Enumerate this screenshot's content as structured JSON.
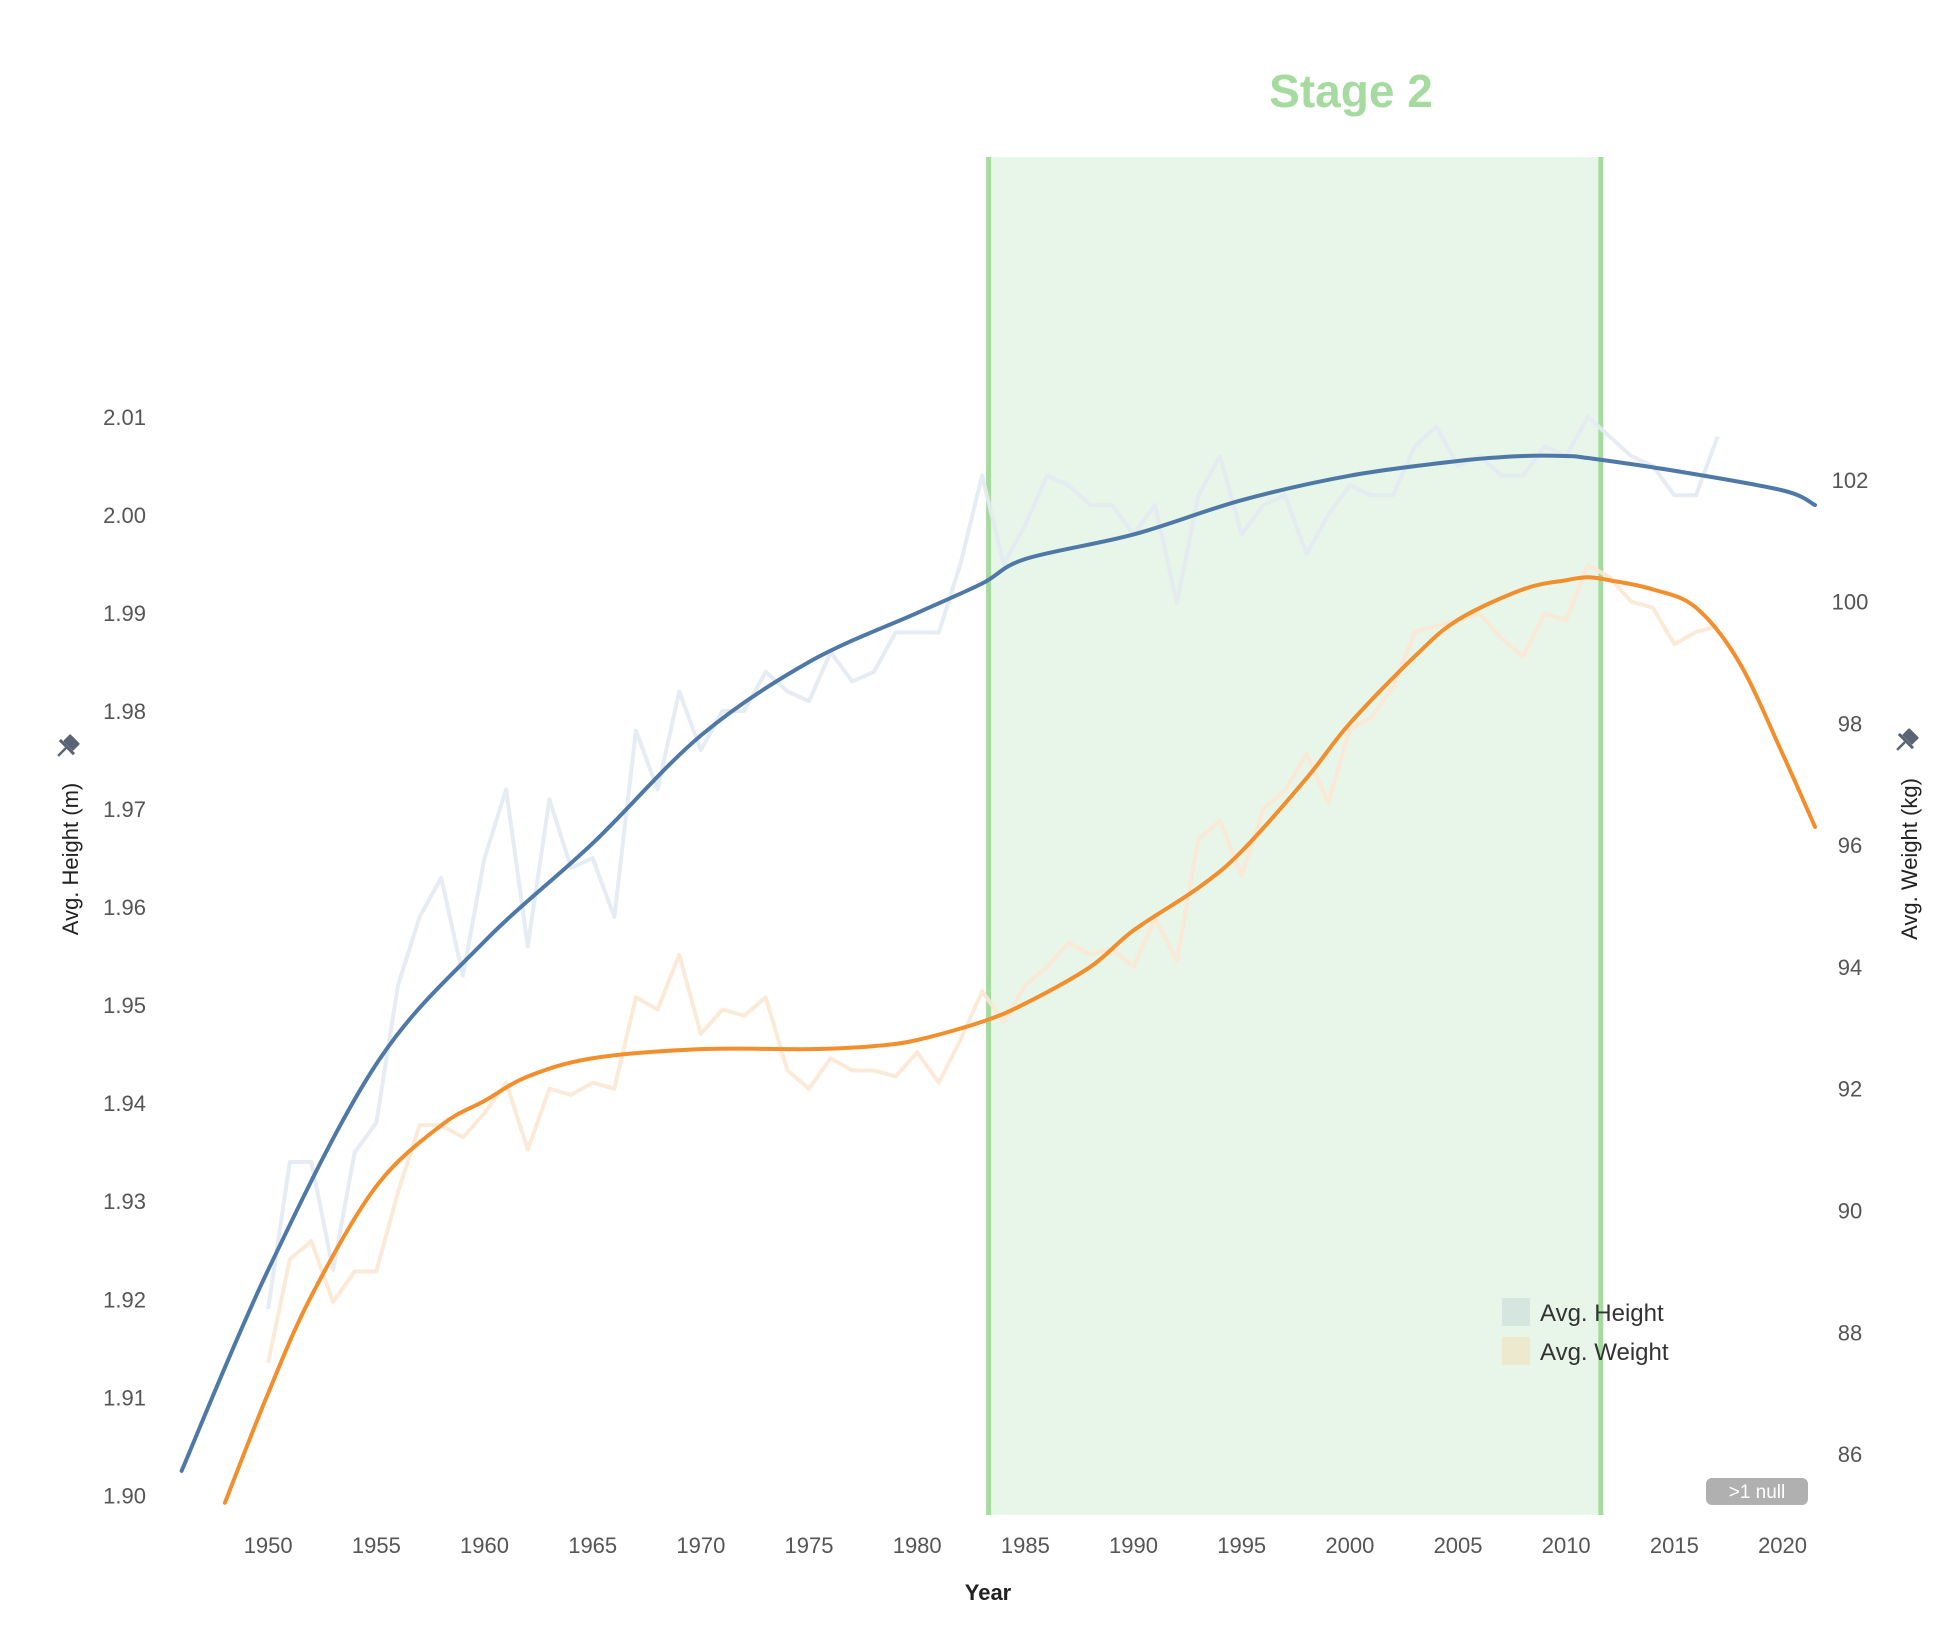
{
  "chart_data": {
    "type": "line",
    "title": "Stage 2",
    "xlabel": "Year",
    "ylabel_left": "Avg. Height (m)",
    "ylabel_right": "Avg. Weight (kg)",
    "xlim": [
      1945,
      2021.5
    ],
    "ylim_left": [
      1.898,
      2.0365
    ],
    "ylim_right": [
      85,
      107.3
    ],
    "x_ticks": [
      1950,
      1955,
      1960,
      1965,
      1970,
      1975,
      1980,
      1985,
      1990,
      1995,
      2000,
      2005,
      2010,
      2015,
      2020
    ],
    "y_ticks_left": [
      1.9,
      1.91,
      1.92,
      1.93,
      1.94,
      1.95,
      1.96,
      1.97,
      1.98,
      1.99,
      2.0,
      2.01
    ],
    "y_ticks_right": [
      86,
      88,
      90,
      92,
      94,
      96,
      98,
      100,
      102
    ],
    "y_tick_labels_left": [
      "1.90",
      "1.91",
      "1.92",
      "1.93",
      "1.94",
      "1.95",
      "1.96",
      "1.97",
      "1.98",
      "1.99",
      "2.00",
      "2.01"
    ],
    "y_tick_labels_right": [
      "86",
      "88",
      "90",
      "92",
      "94",
      "96",
      "98",
      "100",
      "102"
    ],
    "highlight_band": {
      "label": "Stage 2",
      "x_start": 1983.3,
      "x_end": 2011.6,
      "color": "#e8f5e9",
      "edge_color": "#a6dba0"
    },
    "grid": false,
    "legend_position": "bottom-right",
    "legend": [
      {
        "name": "Avg. Height",
        "color": "#d4e6df"
      },
      {
        "name": "Avg. Weight",
        "color": "#ece9cf"
      }
    ],
    "null_badge": ">1 null",
    "series": [
      {
        "name": "Avg. Height",
        "axis": "left",
        "color": "#e3eaf2",
        "x": [
          1950,
          1951,
          1952,
          1953,
          1954,
          1955,
          1956,
          1957,
          1958,
          1959,
          1960,
          1961,
          1962,
          1963,
          1964,
          1965,
          1966,
          1967,
          1968,
          1969,
          1970,
          1971,
          1972,
          1973,
          1974,
          1975,
          1976,
          1977,
          1978,
          1979,
          1980,
          1981,
          1982,
          1983,
          1984,
          1985,
          1986,
          1987,
          1988,
          1989,
          1990,
          1991,
          1992,
          1993,
          1994,
          1995,
          1996,
          1997,
          1998,
          1999,
          2000,
          2001,
          2002,
          2003,
          2004,
          2005,
          2006,
          2007,
          2008,
          2009,
          2010,
          2011,
          2012,
          2013,
          2014,
          2015,
          2016,
          2017
        ],
        "y": [
          1.919,
          1.934,
          1.934,
          1.923,
          1.935,
          1.938,
          1.952,
          1.959,
          1.963,
          1.953,
          1.965,
          1.972,
          1.956,
          1.971,
          1.964,
          1.965,
          1.959,
          1.978,
          1.972,
          1.982,
          1.976,
          1.98,
          1.98,
          1.984,
          1.982,
          1.981,
          1.986,
          1.983,
          1.984,
          1.988,
          1.988,
          1.988,
          1.995,
          2.004,
          1.995,
          1.999,
          2.004,
          2.003,
          2.001,
          2.001,
          1.998,
          2.001,
          1.991,
          2.002,
          2.006,
          1.998,
          2.001,
          2.002,
          1.996,
          2.0,
          2.003,
          2.002,
          2.002,
          2.007,
          2.009,
          2.005,
          2.006,
          2.004,
          2.004,
          2.007,
          2.006,
          2.01,
          2.008,
          2.006,
          2.005,
          2.002,
          2.002,
          2.008
        ]
      },
      {
        "name": "Avg. Weight",
        "axis": "right",
        "color": "#fce8d4",
        "x": [
          1950,
          1951,
          1952,
          1953,
          1954,
          1955,
          1956,
          1957,
          1958,
          1959,
          1960,
          1961,
          1962,
          1963,
          1964,
          1965,
          1966,
          1967,
          1968,
          1969,
          1970,
          1971,
          1972,
          1973,
          1974,
          1975,
          1976,
          1977,
          1978,
          1979,
          1980,
          1981,
          1982,
          1983,
          1984,
          1985,
          1986,
          1987,
          1988,
          1989,
          1990,
          1991,
          1992,
          1993,
          1994,
          1995,
          1996,
          1997,
          1998,
          1999,
          2000,
          2001,
          2002,
          2003,
          2004,
          2005,
          2006,
          2007,
          2008,
          2009,
          2010,
          2011,
          2012,
          2013,
          2014,
          2015,
          2016,
          2017
        ],
        "y": [
          87.5,
          89.2,
          89.5,
          88.5,
          89.0,
          89.0,
          90.3,
          91.4,
          91.4,
          91.2,
          91.6,
          92.1,
          91.0,
          92.0,
          91.9,
          92.1,
          92.0,
          93.5,
          93.3,
          94.2,
          92.9,
          93.3,
          93.2,
          93.5,
          92.3,
          92.0,
          92.5,
          92.3,
          92.3,
          92.2,
          92.6,
          92.1,
          92.8,
          93.6,
          93.1,
          93.7,
          94.0,
          94.4,
          94.2,
          94.3,
          94.0,
          94.8,
          94.1,
          96.1,
          96.4,
          95.5,
          96.6,
          96.9,
          97.5,
          96.7,
          97.9,
          98.1,
          98.6,
          99.5,
          99.6,
          99.7,
          99.8,
          99.4,
          99.1,
          99.8,
          99.7,
          100.6,
          100.4,
          100.0,
          99.9,
          99.3,
          99.5,
          99.6
        ]
      },
      {
        "name": "Avg. Height trend",
        "axis": "left",
        "color": "#4e79a7",
        "x": [
          1946,
          1950,
          1955,
          1960,
          1965,
          1970,
          1975,
          1980,
          1983,
          1985,
          1990,
          1995,
          2000,
          2005,
          2008,
          2010,
          2011,
          2015,
          2020,
          2021.5
        ],
        "y": [
          1.9025,
          1.923,
          1.944,
          1.9565,
          1.9665,
          1.9775,
          1.985,
          1.99,
          1.993,
          1.9955,
          1.998,
          2.0015,
          2.004,
          2.0055,
          2.006,
          2.006,
          2.0058,
          2.0045,
          2.0025,
          2.001
        ]
      },
      {
        "name": "Avg. Weight trend",
        "axis": "right",
        "color": "#f28e2b",
        "x": [
          1948,
          1950,
          1952,
          1955,
          1958,
          1960,
          1962,
          1965,
          1970,
          1975,
          1978,
          1980,
          1983,
          1985,
          1988,
          1990,
          1993,
          1995,
          1998,
          2000,
          2003,
          2005,
          2008,
          2010,
          2011,
          2012,
          2014,
          2016,
          2018,
          2020,
          2021.5
        ],
        "y": [
          85.2,
          87.0,
          88.6,
          90.4,
          91.4,
          91.8,
          92.2,
          92.5,
          92.65,
          92.65,
          92.7,
          92.8,
          93.1,
          93.4,
          94.0,
          94.6,
          95.3,
          95.9,
          97.1,
          98.0,
          99.1,
          99.7,
          100.2,
          100.35,
          100.4,
          100.35,
          100.2,
          99.9,
          99.0,
          97.5,
          96.3
        ]
      }
    ]
  }
}
